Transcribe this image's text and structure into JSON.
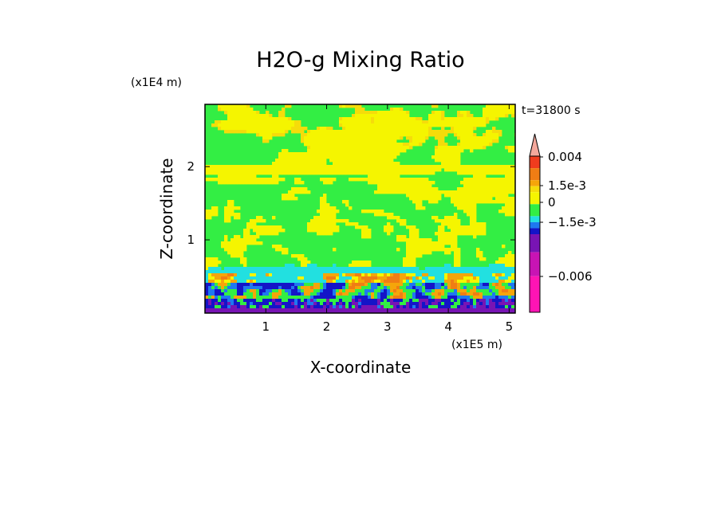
{
  "chart_data": {
    "type": "heatmap",
    "title": "H2O-g Mixing Ratio",
    "xlabel": "X-coordinate",
    "ylabel": "Z-coordinate",
    "x_unit": "(x1E5 m)",
    "y_unit": "(x1E4 m)",
    "xlim": [
      0,
      5.1
    ],
    "ylim": [
      0,
      2.85
    ],
    "x_ticks": [
      1,
      2,
      3,
      4,
      5
    ],
    "y_ticks": [
      1,
      2
    ],
    "x_tick_labels": [
      "1",
      "2",
      "3",
      "4",
      "5"
    ],
    "y_tick_labels": [
      "1",
      "2"
    ],
    "time_label": "t=31800 s",
    "colorbar": {
      "levels_top_to_bottom": [
        "#f4a89c",
        "#f03c1e",
        "#f07d14",
        "#f5a50a",
        "#f5dc0a",
        "#f5f500",
        "#33ee44",
        "#22e0e0",
        "#1e78f0",
        "#1414c8",
        "#7814b4",
        "#c814b4",
        "#ff14b4"
      ],
      "labels": [
        "0.004",
        "1.5e-3",
        "0",
        "−1.5e-3",
        "−0.006"
      ]
    }
  }
}
